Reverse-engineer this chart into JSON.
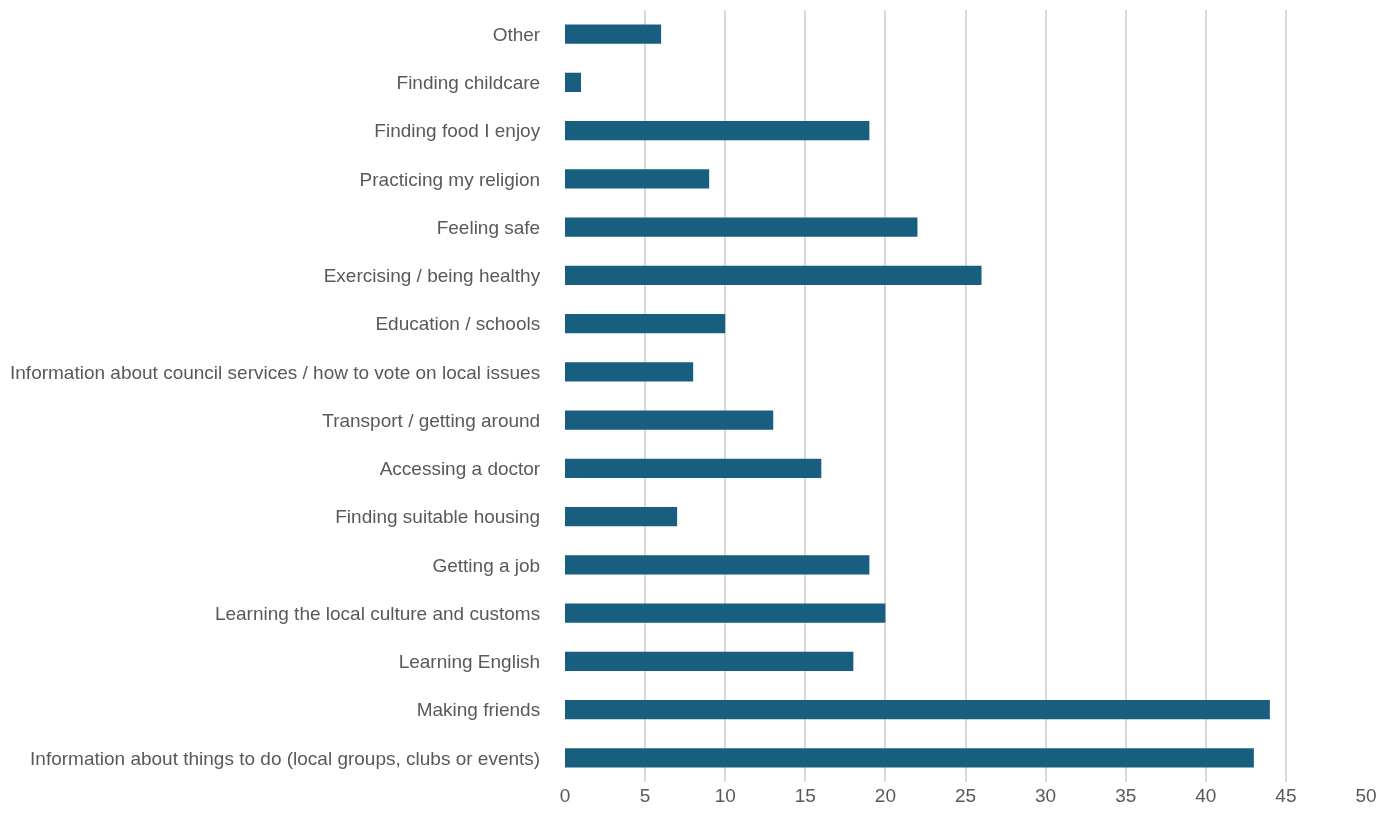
{
  "chart_data": {
    "type": "bar",
    "orientation": "horizontal",
    "categories": [
      "Other",
      "Finding childcare",
      "Finding food I enjoy",
      "Practicing my religion",
      "Feeling safe",
      "Exercising / being healthy",
      "Education / schools",
      "Information about council services / how to vote on local issues",
      "Transport / getting around",
      "Accessing a doctor",
      "Finding suitable housing",
      "Getting a job",
      "Learning the local culture and customs",
      "Learning English",
      "Making friends",
      "Information about things to do (local groups, clubs or events)"
    ],
    "values": [
      6,
      1,
      19,
      9,
      22,
      26,
      10,
      8,
      13,
      16,
      7,
      19,
      20,
      18,
      44,
      43
    ],
    "color": "#175e7f",
    "xlim": [
      0,
      50
    ],
    "xticks": [
      0,
      5,
      10,
      15,
      20,
      25,
      30,
      35,
      40,
      45,
      50
    ],
    "grid": "x"
  }
}
